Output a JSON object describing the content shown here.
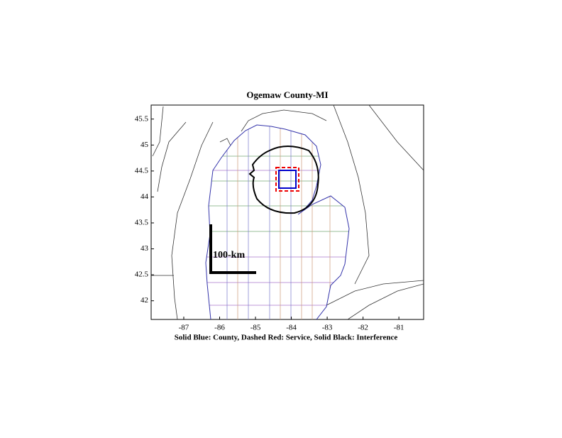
{
  "chart_data": {
    "type": "map",
    "title": "Ogemaw County-MI",
    "xlabel": "Solid Blue: County, Dashed Red: Service, Solid Black: Interference",
    "xlim": [
      -87.91,
      -80.31
    ],
    "ylim": [
      41.64,
      45.77
    ],
    "xticks": [
      -87,
      -86,
      -85,
      -84,
      -83,
      -82,
      -81
    ],
    "yticks": [
      42,
      42.5,
      43,
      43.5,
      44,
      44.5,
      45,
      45.5
    ],
    "scale_label": "100-km"
  }
}
